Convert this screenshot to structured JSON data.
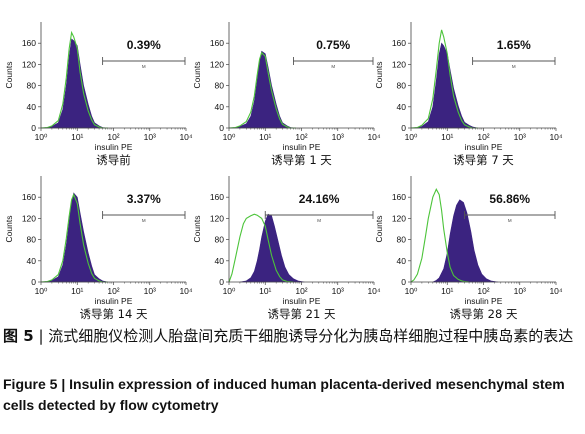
{
  "caption": {
    "figure_label_zh": "图 5",
    "separator": "|",
    "text_zh": "流式细胞仪检测人胎盘间充质干细胞诱导分化为胰岛样细胞过程中胰岛素的表达",
    "figure_label_en": "Figure 5",
    "text_en": "Insulin expression of induced human placenta-derived mesenchymal stem cells detected by flow cytometry"
  },
  "colors": {
    "histogram_fill": "#3b2380",
    "control_line": "#4cc43a",
    "axis": "#444444",
    "text": "#111111"
  },
  "chart_data": [
    {
      "type": "area",
      "panel": "诱导前",
      "xlabel": "insulin PE",
      "ylabel": "Counts",
      "x_scale": "log",
      "xlim": [
        1,
        10000
      ],
      "x_ticks": [
        "10⁰",
        "10¹",
        "10²",
        "10³",
        "10⁴"
      ],
      "ylim": [
        0,
        200
      ],
      "y_ticks": [
        "0",
        "40",
        "80",
        "120",
        "160"
      ],
      "series": [
        {
          "role": "sample",
          "x": [
            1,
            1.5,
            2,
            3,
            4,
            5,
            6,
            7,
            8,
            10,
            12,
            15,
            20,
            25,
            30,
            40,
            50,
            70
          ],
          "y": [
            0,
            1,
            3,
            10,
            35,
            80,
            135,
            168,
            165,
            155,
            120,
            80,
            45,
            22,
            10,
            4,
            1,
            0
          ]
        },
        {
          "role": "control",
          "x": [
            1,
            1.5,
            2,
            3,
            4,
            5,
            6,
            7,
            8,
            10,
            12,
            15,
            20,
            25,
            30,
            40,
            50,
            70
          ],
          "y": [
            0,
            1,
            4,
            14,
            45,
            95,
            150,
            180,
            172,
            150,
            105,
            65,
            32,
            15,
            6,
            2,
            0,
            0
          ]
        }
      ],
      "gate": {
        "label": "M",
        "range": [
          50,
          10000
        ],
        "percent": "0.39%"
      }
    },
    {
      "type": "area",
      "panel": "诱导第 1 天",
      "xlabel": "insulin PE",
      "ylabel": "Counts",
      "x_scale": "log",
      "xlim": [
        1,
        10000
      ],
      "x_ticks": [
        "10⁰",
        "10¹",
        "10²",
        "10³",
        "10⁴"
      ],
      "ylim": [
        0,
        200
      ],
      "y_ticks": [
        "0",
        "40",
        "80",
        "120",
        "160"
      ],
      "series": [
        {
          "role": "sample",
          "x": [
            1,
            1.5,
            2,
            3,
            4,
            5,
            6,
            7,
            8,
            10,
            12,
            15,
            20,
            25,
            30,
            40,
            50,
            70
          ],
          "y": [
            0,
            1,
            3,
            8,
            22,
            50,
            90,
            128,
            145,
            140,
            115,
            80,
            45,
            22,
            10,
            4,
            1,
            0
          ]
        },
        {
          "role": "control",
          "x": [
            1,
            1.5,
            2,
            3,
            4,
            5,
            6,
            7,
            8,
            10,
            12,
            15,
            20,
            25,
            30,
            40,
            50,
            70
          ],
          "y": [
            0,
            1,
            4,
            12,
            30,
            60,
            100,
            130,
            142,
            135,
            105,
            70,
            36,
            17,
            7,
            2,
            0,
            0
          ]
        }
      ],
      "gate": {
        "label": "M",
        "range": [
          60,
          10000
        ],
        "percent": "0.75%"
      }
    },
    {
      "type": "area",
      "panel": "诱导第 7 天",
      "xlabel": "insulin PE",
      "ylabel": "Counts",
      "x_scale": "log",
      "xlim": [
        1,
        10000
      ],
      "x_ticks": [
        "10⁰",
        "10¹",
        "10²",
        "10³",
        "10⁴"
      ],
      "ylim": [
        0,
        200
      ],
      "y_ticks": [
        "0",
        "40",
        "80",
        "120",
        "160"
      ],
      "series": [
        {
          "role": "sample",
          "x": [
            1,
            1.5,
            2,
            3,
            4,
            5,
            6,
            7,
            8,
            10,
            12,
            15,
            20,
            25,
            30,
            40,
            50,
            70
          ],
          "y": [
            0,
            1,
            3,
            12,
            40,
            90,
            140,
            160,
            155,
            140,
            110,
            75,
            42,
            22,
            11,
            5,
            2,
            0
          ]
        },
        {
          "role": "control",
          "x": [
            1,
            1.5,
            2,
            3,
            4,
            5,
            6,
            7,
            8,
            10,
            12,
            15,
            20,
            25,
            30,
            40,
            50,
            70
          ],
          "y": [
            0,
            1,
            5,
            18,
            55,
            110,
            160,
            185,
            172,
            140,
            100,
            60,
            30,
            14,
            6,
            2,
            0,
            0
          ]
        }
      ],
      "gate": {
        "label": "M",
        "range": [
          50,
          10000
        ],
        "percent": "1.65%"
      }
    },
    {
      "type": "area",
      "panel": "诱导第 14 天",
      "xlabel": "insulin PE",
      "ylabel": "Counts",
      "x_scale": "log",
      "xlim": [
        1,
        10000
      ],
      "x_ticks": [
        "10⁰",
        "10¹",
        "10²",
        "10³",
        "10⁴"
      ],
      "ylim": [
        0,
        200
      ],
      "y_ticks": [
        "0",
        "40",
        "80",
        "120",
        "160"
      ],
      "series": [
        {
          "role": "sample",
          "x": [
            1,
            1.5,
            2,
            3,
            4,
            5,
            6,
            7,
            8,
            10,
            12,
            15,
            20,
            25,
            30,
            40,
            50,
            70
          ],
          "y": [
            0,
            1,
            3,
            10,
            32,
            70,
            115,
            150,
            168,
            160,
            130,
            95,
            55,
            30,
            14,
            6,
            2,
            0
          ]
        },
        {
          "role": "control",
          "x": [
            1,
            1.5,
            2,
            3,
            4,
            5,
            6,
            7,
            8,
            10,
            12,
            15,
            20,
            25,
            30,
            40,
            50,
            70
          ],
          "y": [
            0,
            1,
            4,
            14,
            40,
            82,
            125,
            155,
            165,
            148,
            110,
            70,
            35,
            16,
            7,
            2,
            0,
            0
          ]
        }
      ],
      "gate": {
        "label": "M",
        "range": [
          50,
          10000
        ],
        "percent": "3.37%"
      }
    },
    {
      "type": "area",
      "panel": "诱导第 21 天",
      "xlabel": "insulin PE",
      "ylabel": "Counts",
      "x_scale": "log",
      "xlim": [
        1,
        10000
      ],
      "x_ticks": [
        "10⁰",
        "10¹",
        "10²",
        "10³",
        "10⁴"
      ],
      "ylim": [
        0,
        200
      ],
      "y_ticks": [
        "0",
        "40",
        "80",
        "120",
        "160"
      ],
      "series": [
        {
          "role": "sample",
          "x": [
            2,
            3,
            4,
            5,
            6,
            7,
            8,
            10,
            12,
            15,
            18,
            22,
            28,
            35,
            45,
            60,
            80,
            120
          ],
          "y": [
            0,
            2,
            8,
            20,
            40,
            62,
            85,
            115,
            128,
            125,
            105,
            80,
            50,
            28,
            14,
            6,
            2,
            0
          ]
        },
        {
          "role": "control",
          "x": [
            1,
            1.2,
            1.5,
            2,
            2.5,
            3,
            4,
            5,
            6,
            8,
            10,
            12,
            15,
            20,
            25,
            30,
            40,
            60
          ],
          "y": [
            0,
            15,
            45,
            85,
            110,
            120,
            125,
            128,
            126,
            120,
            105,
            80,
            50,
            22,
            10,
            4,
            1,
            0
          ]
        }
      ],
      "gate": {
        "label": "M",
        "range": [
          10,
          10000
        ],
        "percent": "24.16%"
      }
    },
    {
      "type": "area",
      "panel": "诱导第 28 天",
      "xlabel": "insulin PE",
      "ylabel": "Counts",
      "x_scale": "log",
      "xlim": [
        1,
        10000
      ],
      "x_ticks": [
        "10⁰",
        "10¹",
        "10²",
        "10³",
        "10⁴"
      ],
      "ylim": [
        0,
        200
      ],
      "y_ticks": [
        "0",
        "40",
        "80",
        "120",
        "160"
      ],
      "series": [
        {
          "role": "sample",
          "x": [
            4,
            5,
            6,
            8,
            10,
            12,
            15,
            18,
            22,
            28,
            35,
            45,
            55,
            70,
            90,
            120,
            160,
            250
          ],
          "y": [
            0,
            3,
            8,
            25,
            55,
            90,
            125,
            145,
            155,
            150,
            130,
            95,
            60,
            32,
            15,
            6,
            2,
            0
          ]
        },
        {
          "role": "control",
          "x": [
            1,
            1.2,
            1.5,
            2,
            2.5,
            3,
            4,
            5,
            6,
            7,
            8,
            10,
            12,
            15,
            20,
            25,
            30,
            40
          ],
          "y": [
            0,
            4,
            15,
            45,
            85,
            120,
            160,
            175,
            165,
            135,
            100,
            55,
            28,
            12,
            5,
            2,
            1,
            0
          ]
        }
      ],
      "gate": {
        "label": "M",
        "range": [
          30,
          10000
        ],
        "percent": "56.86%"
      }
    }
  ]
}
